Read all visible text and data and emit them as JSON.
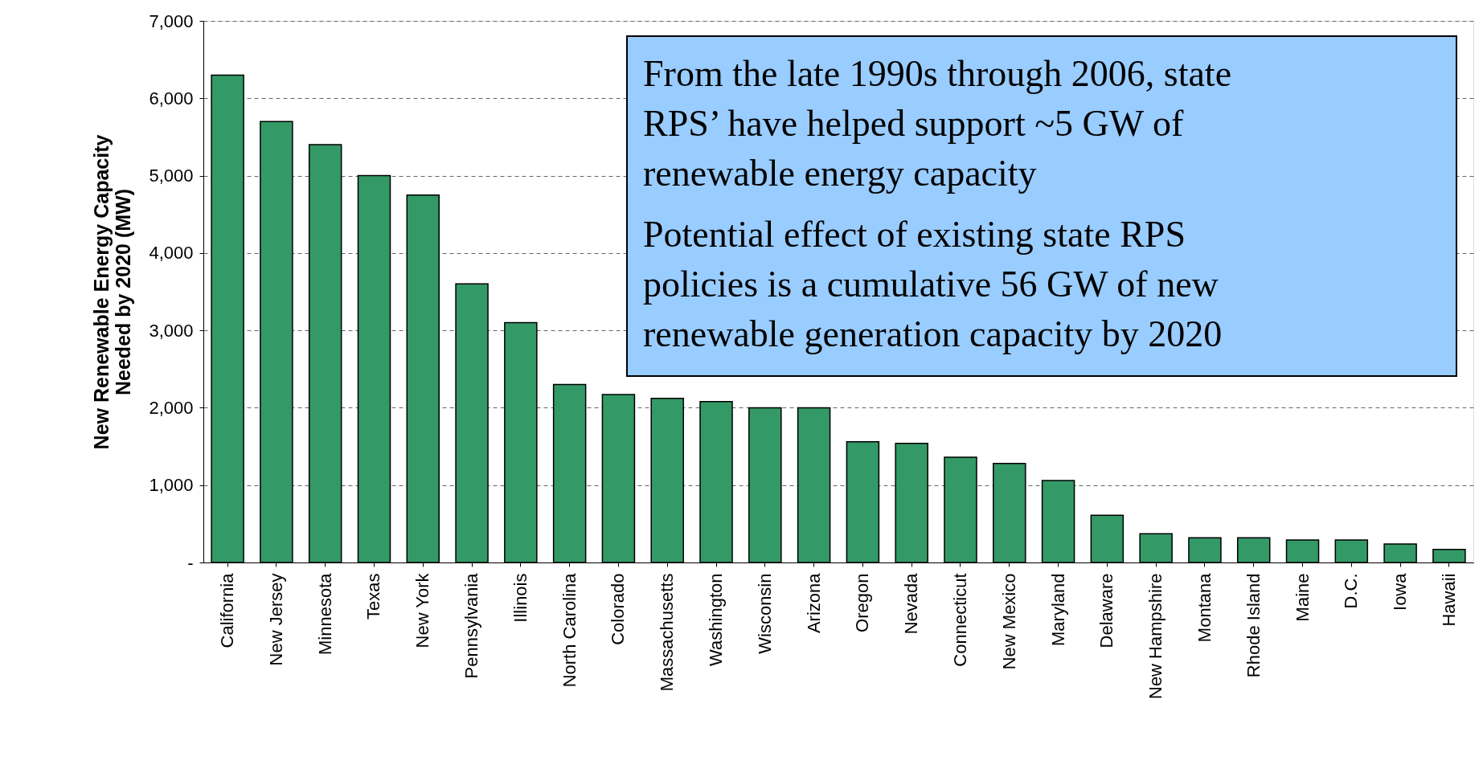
{
  "chart_data": {
    "type": "bar",
    "ylabel": "New Renewable Energy Capacity Needed by 2020 (MW)",
    "categories": [
      "California",
      "New Jersey",
      "Minnesota",
      "Texas",
      "New York",
      "Pennsylvania",
      "Illinois",
      "North Carolina",
      "Colorado",
      "Massachusetts",
      "Washington",
      "Wisconsin",
      "Arizona",
      "Oregon",
      "Nevada",
      "Connecticut",
      "New Mexico",
      "Maryland",
      "Delaware",
      "New Hampshire",
      "Montana",
      "Rhode Island",
      "Maine",
      "D.C.",
      "Iowa",
      "Hawaii"
    ],
    "values": [
      6300,
      5700,
      5400,
      5000,
      4750,
      3600,
      3100,
      2300,
      2170,
      2120,
      2080,
      2000,
      2000,
      1560,
      1540,
      1360,
      1280,
      1060,
      610,
      370,
      320,
      320,
      290,
      290,
      240,
      170
    ],
    "color": "#339966",
    "ylim": [
      0,
      7000
    ],
    "yticks": [
      {
        "value": 0,
        "label": "-"
      },
      {
        "value": 1000,
        "label": "1,000"
      },
      {
        "value": 2000,
        "label": "2,000"
      },
      {
        "value": 3000,
        "label": "3,000"
      },
      {
        "value": 4000,
        "label": "4,000"
      },
      {
        "value": 5000,
        "label": "5,000"
      },
      {
        "value": 6000,
        "label": "6,000"
      },
      {
        "value": 7000,
        "label": "7,000"
      }
    ],
    "grid": "y",
    "legend": false,
    "annotations": [
      "From the late 1990s through 2006, state RPS’ have helped support ~5 GW of renewable energy capacity",
      "Potential effect of existing state RPS policies is a cumulative 56 GW of new renewable generation capacity by 2020"
    ]
  }
}
